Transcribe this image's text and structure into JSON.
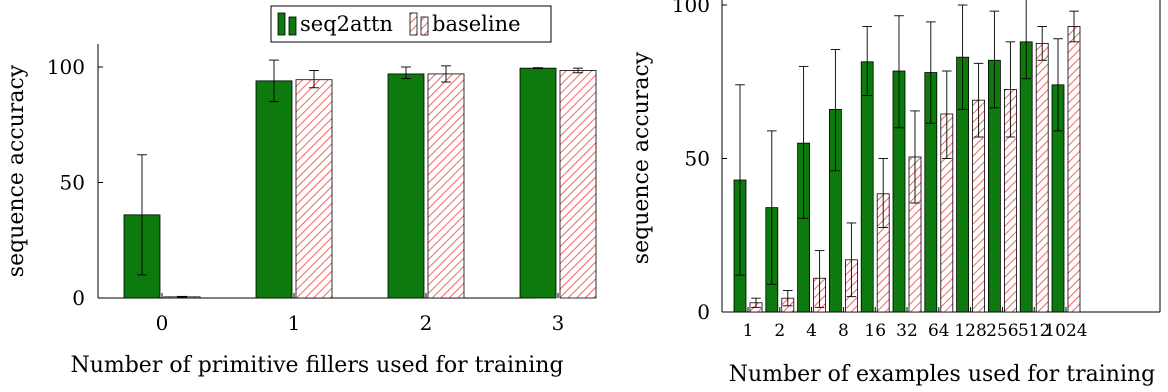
{
  "chart_data": [
    {
      "type": "bar",
      "xlabel": "Number of primitive fillers used for training",
      "ylabel": "sequence accuracy",
      "categories": [
        "0",
        "1",
        "2",
        "3"
      ],
      "ylim": [
        0,
        100
      ],
      "yticks": [
        "0",
        "50",
        "100"
      ],
      "legend": {
        "position": "top-right",
        "entries": [
          "seq2attn",
          "baseline"
        ]
      },
      "grid": false,
      "series": [
        {
          "name": "seq2attn",
          "color": "#0d7a0d",
          "values": [
            36,
            94,
            97,
            99.5
          ],
          "err_low": [
            10,
            85,
            95,
            99.3
          ],
          "err_high": [
            62,
            103,
            100,
            99.7
          ]
        },
        {
          "name": "baseline",
          "color": "#e8413c",
          "hatch": true,
          "values": [
            0.5,
            94.5,
            97,
            98.5
          ],
          "err_low": [
            0.3,
            91,
            93.5,
            97.5
          ],
          "err_high": [
            0.7,
            98.5,
            100.5,
            99.5
          ]
        }
      ]
    },
    {
      "type": "bar",
      "xlabel": "Number of examples used for training",
      "ylabel": "sequence accuracy",
      "categories": [
        "1",
        "2",
        "4",
        "8",
        "16",
        "32",
        "64",
        "128",
        "256",
        "512",
        "1024"
      ],
      "ylim": [
        0,
        100
      ],
      "yticks": [
        "0",
        "50",
        "100"
      ],
      "grid": false,
      "series": [
        {
          "name": "seq2attn",
          "color": "#0d7a0d",
          "values": [
            43,
            34,
            55,
            66,
            81.5,
            78.5,
            78,
            83,
            82,
            88,
            74
          ],
          "err_low": [
            12,
            9,
            30.5,
            46,
            70.5,
            60,
            61.5,
            66,
            66.5,
            76,
            59
          ],
          "err_high": [
            74,
            59,
            80,
            85.5,
            93,
            96.5,
            94.5,
            100,
            98,
            103,
            89
          ]
        },
        {
          "name": "baseline",
          "color": "#e8413c",
          "hatch": true,
          "values": [
            3,
            4.5,
            11,
            17,
            38.5,
            50.5,
            64.5,
            69,
            72.5,
            87.5,
            93
          ],
          "err_low": [
            1.5,
            2,
            1.5,
            5,
            27.5,
            35.5,
            50,
            57,
            57,
            82,
            88
          ],
          "err_high": [
            4.5,
            7,
            20,
            29,
            50,
            65.5,
            78.5,
            81,
            88,
            93,
            98
          ]
        }
      ]
    }
  ]
}
